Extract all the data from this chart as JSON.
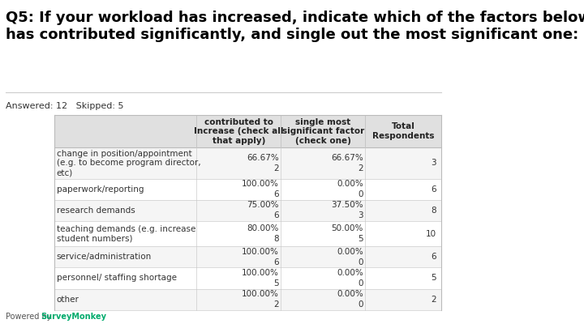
{
  "title": "Q5: If your workload has increased, indicate which of the factors below\nhas contributed significantly, and single out the most significant one:",
  "answered": "Answered: 12   Skipped: 5",
  "col_headers": [
    "",
    "contributed to\nIncrease (check all\nthat apply)",
    "single most\nsignificant factor\n(check one)",
    "Total\nRespondents"
  ],
  "rows": [
    {
      "label": "change in position/appointment\n(e.g. to become program director,\netc)",
      "col1_pct": "66.67%",
      "col1_n": "2",
      "col2_pct": "66.67%",
      "col2_n": "2",
      "col3_n": "3"
    },
    {
      "label": "paperwork/reporting",
      "col1_pct": "100.00%",
      "col1_n": "6",
      "col2_pct": "0.00%",
      "col2_n": "0",
      "col3_n": "6"
    },
    {
      "label": "research demands",
      "col1_pct": "75.00%",
      "col1_n": "6",
      "col2_pct": "37.50%",
      "col2_n": "3",
      "col3_n": "8"
    },
    {
      "label": "teaching demands (e.g. increase\nstudent numbers)",
      "col1_pct": "80.00%",
      "col1_n": "8",
      "col2_pct": "50.00%",
      "col2_n": "5",
      "col3_n": "10"
    },
    {
      "label": "service/administration",
      "col1_pct": "100.00%",
      "col1_n": "6",
      "col2_pct": "0.00%",
      "col2_n": "0",
      "col3_n": "6"
    },
    {
      "label": "personnel/ staffing shortage",
      "col1_pct": "100.00%",
      "col1_n": "5",
      "col2_pct": "0.00%",
      "col2_n": "0",
      "col3_n": "5"
    },
    {
      "label": "other",
      "col1_pct": "100.00%",
      "col1_n": "2",
      "col2_pct": "0.00%",
      "col2_n": "0",
      "col3_n": "2"
    }
  ],
  "bg_color": "#ffffff",
  "header_bg": "#e0e0e0",
  "row_bg_odd": "#f5f5f5",
  "row_bg_even": "#ffffff",
  "title_fontsize": 13,
  "body_fontsize": 7.5,
  "header_fontsize": 7.5,
  "answered_fontsize": 8,
  "footer_text": "Powered by",
  "surveymonkey_text": "SurveyMonkey"
}
